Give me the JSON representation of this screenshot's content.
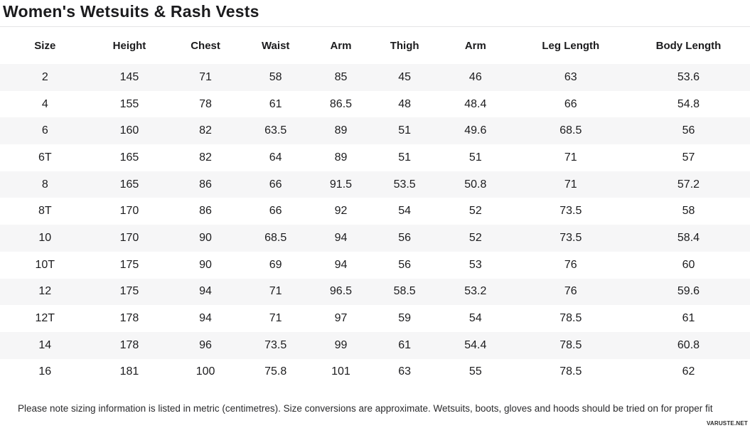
{
  "title": "Women's Wetsuits & Rash Vests",
  "table": {
    "columns": [
      "Size",
      "Height",
      "Chest",
      "Waist",
      "Arm",
      "Thigh",
      "Arm",
      "Leg Length",
      "Body Length"
    ],
    "rows": [
      [
        "2",
        "145",
        "71",
        "58",
        "85",
        "45",
        "46",
        "63",
        "53.6"
      ],
      [
        "4",
        "155",
        "78",
        "61",
        "86.5",
        "48",
        "48.4",
        "66",
        "54.8"
      ],
      [
        "6",
        "160",
        "82",
        "63.5",
        "89",
        "51",
        "49.6",
        "68.5",
        "56"
      ],
      [
        "6T",
        "165",
        "82",
        "64",
        "89",
        "51",
        "51",
        "71",
        "57"
      ],
      [
        "8",
        "165",
        "86",
        "66",
        "91.5",
        "53.5",
        "50.8",
        "71",
        "57.2"
      ],
      [
        "8T",
        "170",
        "86",
        "66",
        "92",
        "54",
        "52",
        "73.5",
        "58"
      ],
      [
        "10",
        "170",
        "90",
        "68.5",
        "94",
        "56",
        "52",
        "73.5",
        "58.4"
      ],
      [
        "10T",
        "175",
        "90",
        "69",
        "94",
        "56",
        "53",
        "76",
        "60"
      ],
      [
        "12",
        "175",
        "94",
        "71",
        "96.5",
        "58.5",
        "53.2",
        "76",
        "59.6"
      ],
      [
        "12T",
        "178",
        "94",
        "71",
        "97",
        "59",
        "54",
        "78.5",
        "61"
      ],
      [
        "14",
        "178",
        "96",
        "73.5",
        "99",
        "61",
        "54.4",
        "78.5",
        "60.8"
      ],
      [
        "16",
        "181",
        "100",
        "75.8",
        "101",
        "63",
        "55",
        "78.5",
        "62"
      ]
    ]
  },
  "footer": {
    "note": "Please note sizing information is listed in metric (centimetres). Size conversions are approximate. Wetsuits, boots, gloves and hoods should be tried on for proper fit"
  },
  "watermark": "VARUSTE.NET",
  "colors": {
    "row_stripe": "#f6f6f7",
    "divider": "#e4e4e6",
    "text": "#1c1c1e"
  }
}
